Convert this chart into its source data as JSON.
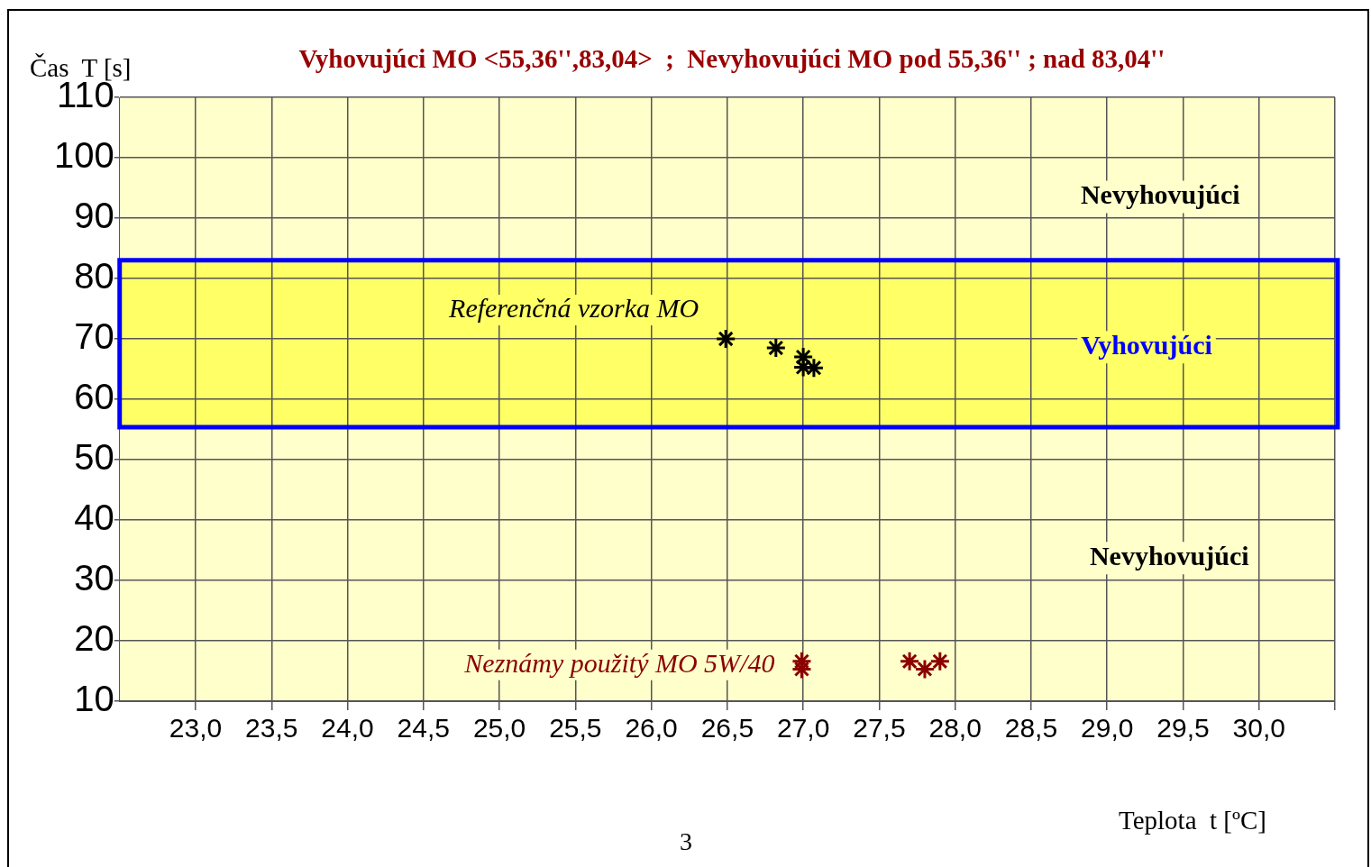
{
  "chart_data": {
    "type": "scatter",
    "title": "Vyhovujúci MO <55,36'',83,04>  ;  Nevyhovujúci MO pod 55,36'' ; nad 83,04''",
    "xlabel": "Teplota  t [ºC]",
    "ylabel": "Čas  T [s]",
    "series": [
      {
        "name": "Referenčná vzorka MO",
        "color": "#000000",
        "x": [
          26.49,
          26.82,
          27.0,
          27.0,
          27.07
        ],
        "values": [
          70,
          68.5,
          67,
          65.3,
          65.2
        ]
      },
      {
        "name": "Neznámy použitý MO 5W/40",
        "color": "#8b0000",
        "x": [
          26.99,
          26.99,
          27.7,
          27.8,
          27.9
        ],
        "values": [
          16.6,
          15.3,
          16.6,
          15.3,
          16.6
        ]
      }
    ],
    "bands": [
      {
        "axis": "y",
        "from": 55.36,
        "to": 83.04,
        "label": "Vyhovujúci",
        "color": "#ffff66"
      }
    ],
    "annotations": [
      "Nevyhovujúci",
      "Nevyhovujúci",
      "3"
    ],
    "xlim": [
      22.5,
      30.5
    ],
    "xticks": [
      {
        "value": 23,
        "label": "23,0"
      },
      {
        "value": 23.5,
        "label": "23,5"
      },
      {
        "value": 24,
        "label": "24,0"
      },
      {
        "value": 24.5,
        "label": "24,5"
      },
      {
        "value": 25,
        "label": "25,0"
      },
      {
        "value": 25.5,
        "label": "25,5"
      },
      {
        "value": 26,
        "label": "26,0"
      },
      {
        "value": 26.5,
        "label": "26,5"
      },
      {
        "value": 27,
        "label": "27,0"
      },
      {
        "value": 27.5,
        "label": "27,5"
      },
      {
        "value": 28,
        "label": "28,0"
      },
      {
        "value": 28.5,
        "label": "28,5"
      },
      {
        "value": 29,
        "label": "29,0"
      },
      {
        "value": 29.5,
        "label": "29,5"
      },
      {
        "value": 30,
        "label": "30,0"
      },
      {
        "value": 30.5,
        "label": null
      }
    ],
    "ylim": [
      10,
      110
    ],
    "yticks": [
      10,
      20,
      30,
      40,
      50,
      60,
      70,
      80,
      90,
      100,
      110
    ],
    "grid": true,
    "marker": "cross",
    "legend": false
  }
}
